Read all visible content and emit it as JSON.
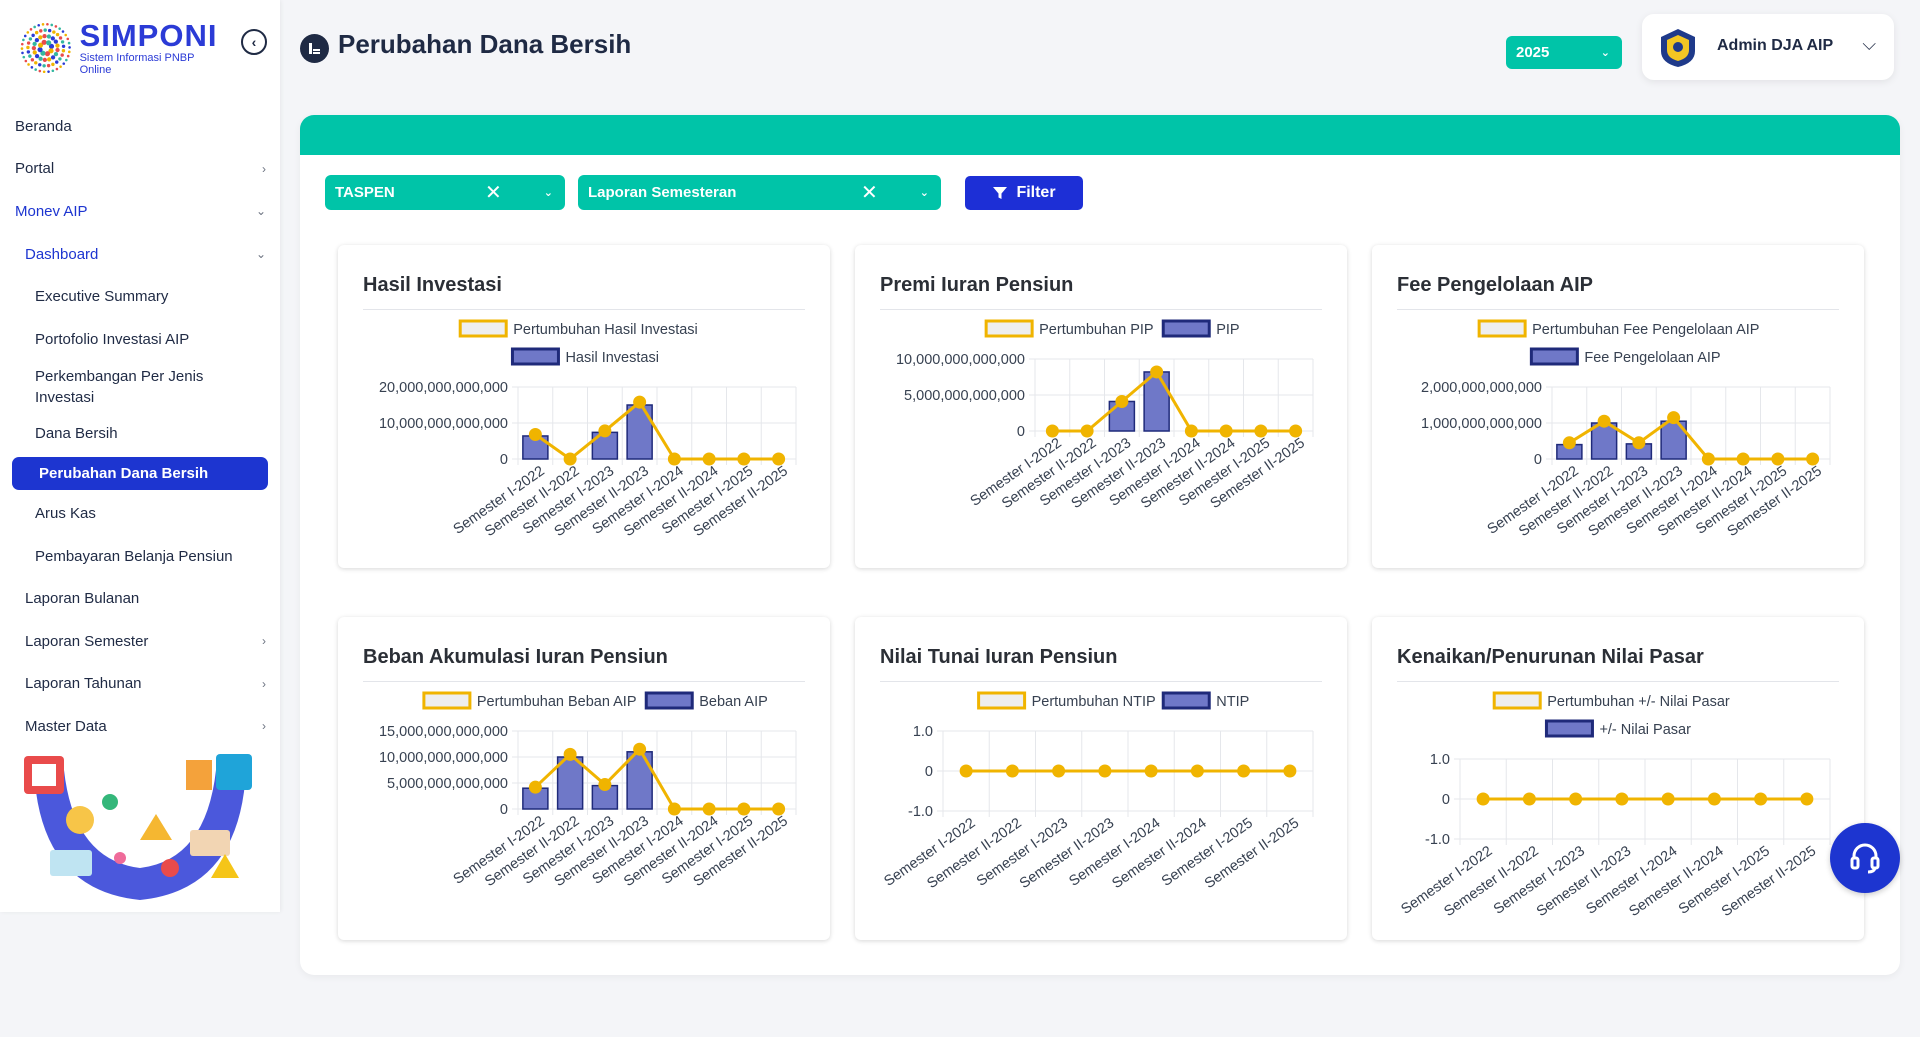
{
  "brand": {
    "title": "SIMPONI",
    "subtitle": "Sistem Informasi PNBP Online"
  },
  "sidebar": {
    "items": [
      {
        "label": "Beranda",
        "level": 0,
        "chevron": false
      },
      {
        "label": "Portal",
        "level": 0,
        "chevron": "right"
      },
      {
        "label": "Monev AIP",
        "level": 0,
        "chevron": "down",
        "active": true
      },
      {
        "label": "Dashboard",
        "level": 1,
        "chevron": "down",
        "active": true
      },
      {
        "label": "Executive Summary",
        "level": 2
      },
      {
        "label": "Portofolio Investasi AIP",
        "level": 2
      },
      {
        "label": "Perkembangan Per Jenis Investasi",
        "level": 2,
        "tall": true
      },
      {
        "label": "Dana Bersih",
        "level": 2
      },
      {
        "label": "Perubahan Dana Bersih",
        "level": 2,
        "selected": true
      },
      {
        "label": "Arus Kas",
        "level": 2
      },
      {
        "label": "Pembayaran Belanja Pensiun",
        "level": 2
      },
      {
        "label": "Laporan Bulanan",
        "level": 1
      },
      {
        "label": "Laporan Semester",
        "level": 1,
        "chevron": "right"
      },
      {
        "label": "Laporan Tahunan",
        "level": 1,
        "chevron": "right"
      },
      {
        "label": "Master Data",
        "level": 1,
        "chevron": "right"
      }
    ]
  },
  "header": {
    "title": "Perubahan Dana Bersih",
    "year": "2025",
    "user": "Admin DJA AIP"
  },
  "filters": {
    "entity": "TASPEN",
    "report": "Laporan Semesteran",
    "button": "Filter",
    "clear_glyph": "✕",
    "dropdown_glyph": "⌄"
  },
  "colors": {
    "teal": "#00c4a8",
    "primary": "#1d35d0",
    "line": "#f0b400",
    "bar": "#6f78c8",
    "bar_border": "#1f2a7a"
  },
  "chart_data": [
    {
      "type": "bar",
      "title": "Hasil Investasi",
      "categories": [
        "Semester I-2022",
        "Semester II-2022",
        "Semester I-2023",
        "Semester II-2023",
        "Semester I-2024",
        "Semester II-2024",
        "Semester I-2025",
        "Semester II-2025"
      ],
      "series": [
        {
          "name": "Pertumbuhan Hasil Investasi",
          "type": "line",
          "values": [
            6800000000000,
            0,
            7800000000000,
            15800000000000,
            0,
            0,
            0,
            0
          ]
        },
        {
          "name": "Hasil Investasi",
          "type": "bar",
          "values": [
            6400000000000,
            0,
            7400000000000,
            15000000000000,
            0,
            0,
            0,
            0
          ]
        }
      ],
      "yticks": [
        "20,000,000,000,000",
        "10,000,000,000,000",
        "0"
      ],
      "ylim": [
        0,
        20000000000000
      ],
      "legend": "top"
    },
    {
      "type": "bar",
      "title": "Premi Iuran Pensiun",
      "categories": [
        "Semester I-2022",
        "Semester II-2022",
        "Semester I-2023",
        "Semester II-2023",
        "Semester I-2024",
        "Semester II-2024",
        "Semester I-2025",
        "Semester II-2025"
      ],
      "series": [
        {
          "name": "Pertumbuhan PIP",
          "type": "line",
          "values": [
            0,
            0,
            4100000000000,
            8200000000000,
            0,
            0,
            0,
            0
          ]
        },
        {
          "name": "PIP",
          "type": "bar",
          "values": [
            0,
            0,
            4100000000000,
            8200000000000,
            0,
            0,
            0,
            0
          ]
        }
      ],
      "yticks": [
        "10,000,000,000,000",
        "5,000,000,000,000",
        "0"
      ],
      "ylim": [
        0,
        10000000000000
      ],
      "legend": "top"
    },
    {
      "type": "bar",
      "title": "Fee Pengelolaan AIP",
      "categories": [
        "Semester I-2022",
        "Semester II-2022",
        "Semester I-2023",
        "Semester II-2023",
        "Semester I-2024",
        "Semester II-2024",
        "Semester I-2025",
        "Semester II-2025"
      ],
      "series": [
        {
          "name": "Pertumbuhan Fee Pengelolaan AIP",
          "type": "line",
          "values": [
            450000000000,
            1050000000000,
            450000000000,
            1150000000000,
            0,
            0,
            0,
            0
          ]
        },
        {
          "name": "Fee Pengelolaan AIP",
          "type": "bar",
          "values": [
            400000000000,
            1000000000000,
            420000000000,
            1050000000000,
            0,
            0,
            0,
            0
          ]
        }
      ],
      "yticks": [
        "2,000,000,000,000",
        "1,000,000,000,000",
        "0"
      ],
      "ylim": [
        0,
        2000000000000
      ],
      "legend": "top"
    },
    {
      "type": "bar",
      "title": "Beban Akumulasi Iuran Pensiun",
      "categories": [
        "Semester I-2022",
        "Semester II-2022",
        "Semester I-2023",
        "Semester II-2023",
        "Semester I-2024",
        "Semester II-2024",
        "Semester I-2025",
        "Semester II-2025"
      ],
      "series": [
        {
          "name": "Pertumbuhan Beban AIP",
          "type": "line",
          "values": [
            4200000000000,
            10500000000000,
            4700000000000,
            11500000000000,
            0,
            0,
            0,
            0
          ]
        },
        {
          "name": "Beban AIP",
          "type": "bar",
          "values": [
            4000000000000,
            10000000000000,
            4500000000000,
            11000000000000,
            0,
            0,
            0,
            0
          ]
        }
      ],
      "yticks": [
        "15,000,000,000,000",
        "10,000,000,000,000",
        "5,000,000,000,000",
        "0"
      ],
      "ylim": [
        0,
        15000000000000
      ],
      "legend": "top"
    },
    {
      "type": "bar",
      "title": "Nilai Tunai Iuran Pensiun",
      "categories": [
        "Semester I-2022",
        "Semester II-2022",
        "Semester I-2023",
        "Semester II-2023",
        "Semester I-2024",
        "Semester II-2024",
        "Semester I-2025",
        "Semester II-2025"
      ],
      "series": [
        {
          "name": "Pertumbuhan NTIP",
          "type": "line",
          "values": [
            0,
            0,
            0,
            0,
            0,
            0,
            0,
            0
          ]
        },
        {
          "name": "NTIP",
          "type": "bar",
          "values": [
            0,
            0,
            0,
            0,
            0,
            0,
            0,
            0
          ]
        }
      ],
      "yticks": [
        "1.0",
        "0",
        "-1.0"
      ],
      "ylim": [
        -1,
        1
      ],
      "legend": "top"
    },
    {
      "type": "bar",
      "title": "Kenaikan/Penurunan Nilai Pasar",
      "categories": [
        "Semester I-2022",
        "Semester II-2022",
        "Semester I-2023",
        "Semester II-2023",
        "Semester I-2024",
        "Semester II-2024",
        "Semester I-2025",
        "Semester II-2025"
      ],
      "series": [
        {
          "name": "Pertumbuhan +/- Nilai Pasar",
          "type": "line",
          "values": [
            0,
            0,
            0,
            0,
            0,
            0,
            0,
            0
          ]
        },
        {
          "name": "+/- Nilai Pasar",
          "type": "bar",
          "values": [
            0,
            0,
            0,
            0,
            0,
            0,
            0,
            0
          ]
        }
      ],
      "yticks": [
        "1.0",
        "0",
        "-1.0"
      ],
      "ylim": [
        -1,
        1
      ],
      "legend": "top"
    }
  ]
}
